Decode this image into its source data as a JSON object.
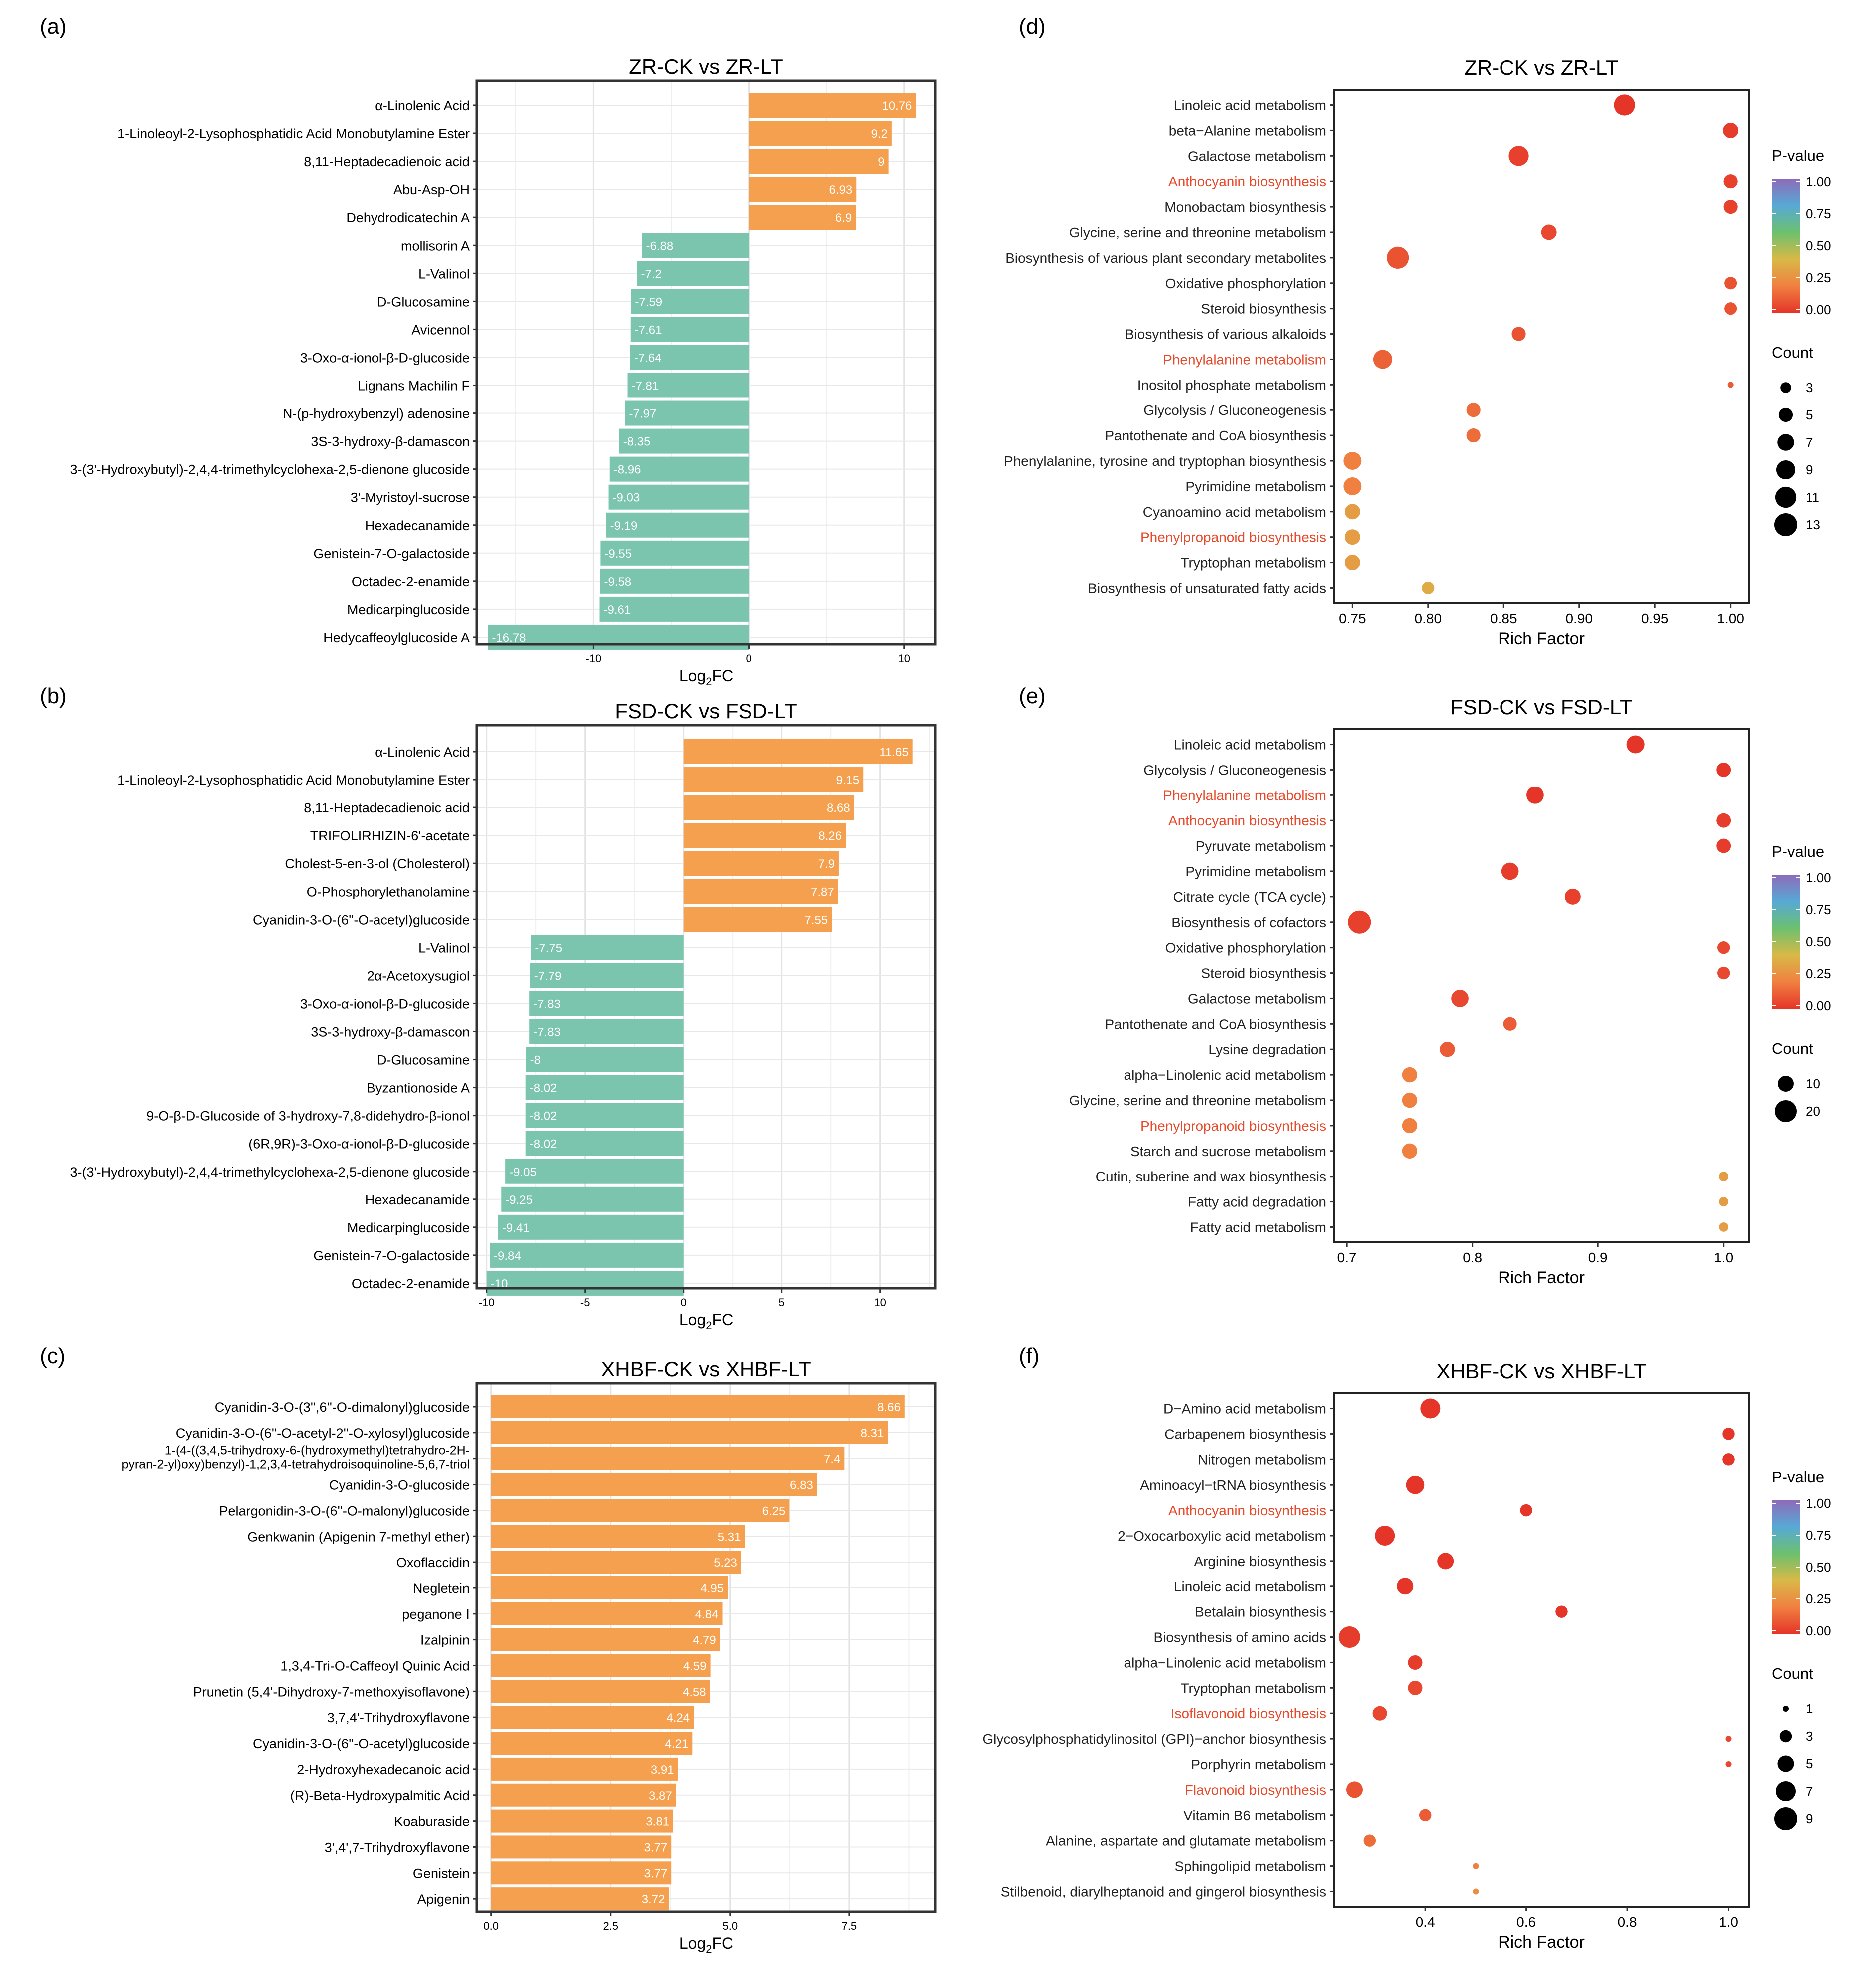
{
  "colors": {
    "up_bar": "#F4A04E",
    "down_bar": "#7BC5AE",
    "gradient": [
      "#8E6BB8",
      "#57A9D6",
      "#6CC06E",
      "#D8B947",
      "#F08040",
      "#E53529"
    ],
    "highlight_label": "#E8492A",
    "normal_label": "#222222"
  },
  "chart_data": [
    {
      "panel": "(a)",
      "type": "bar",
      "orientation": "horizontal",
      "title": "ZR-CK vs ZR-LT",
      "xlabel": "Log2FC",
      "xlim": [
        -17.5,
        12
      ],
      "xticks": [
        -10,
        0,
        10
      ],
      "grid": true,
      "categories": [
        "α-Linolenic Acid",
        "1-Linoleoyl-2-Lysophosphatidic Acid Monobutylamine Ester",
        "8,11-Heptadecadienoic acid",
        "Abu-Asp-OH",
        "Dehydrodicatechin A",
        "mollisorin A",
        "L-Valinol",
        "D-Glucosamine",
        "Avicennol",
        "3-Oxo-α-ionol-β-D-glucoside",
        "Lignans Machilin F",
        "N-(p-hydroxybenzyl) adenosine",
        "3S-3-hydroxy-β-damascon",
        "3-(3'-Hydroxybutyl)-2,4,4-trimethylcyclohexa-2,5-dienone glucoside",
        "3'-Myristoyl-sucrose",
        "Hexadecanamide",
        "Genistein-7-O-galactoside",
        "Octadec-2-enamide",
        "Medicarpinglucoside",
        "Hedycaffeoylglucoside A"
      ],
      "values": [
        10.76,
        9.2,
        9,
        6.93,
        6.9,
        -6.88,
        -7.2,
        -7.59,
        -7.61,
        -7.64,
        -7.81,
        -7.97,
        -8.35,
        -8.96,
        -9.03,
        -9.19,
        -9.55,
        -9.58,
        -9.61,
        -16.78
      ],
      "value_labels": [
        "10.76",
        "9.2",
        "9",
        "6.93",
        "6.9",
        "-6.88",
        "-7.2",
        "-7.59",
        "-7.61",
        "-7.64",
        "-7.81",
        "-7.97",
        "-8.35",
        "-8.96",
        "-9.03",
        "-9.19",
        "-9.55",
        "-9.58",
        "-9.61",
        "-16.78"
      ]
    },
    {
      "panel": "(b)",
      "type": "bar",
      "orientation": "horizontal",
      "title": "FSD-CK vs FSD-LT",
      "xlabel": "Log2FC",
      "xlim": [
        -10.5,
        12.8
      ],
      "xticks": [
        -10,
        -5,
        0,
        5,
        10
      ],
      "grid": true,
      "categories": [
        "α-Linolenic Acid",
        "1-Linoleoyl-2-Lysophosphatidic Acid Monobutylamine Ester",
        "8,11-Heptadecadienoic acid",
        "TRIFOLIRHIZIN-6'-acetate",
        "Cholest-5-en-3-ol (Cholesterol)",
        "O-Phosphorylethanolamine",
        "Cyanidin-3-O-(6''-O-acetyl)glucoside",
        "L-Valinol",
        "2α-Acetoxysugiol",
        "3-Oxo-α-ionol-β-D-glucoside",
        "3S-3-hydroxy-β-damascon",
        "D-Glucosamine",
        "Byzantionoside A",
        "9-O-β-D-Glucoside of 3-hydroxy-7,8-didehydro-β-ionol",
        "(6R,9R)-3-Oxo-α-ionol-β-D-glucoside",
        "3-(3'-Hydroxybutyl)-2,4,4-trimethylcyclohexa-2,5-dienone glucoside",
        "Hexadecanamide",
        "Medicarpinglucoside",
        "Genistein-7-O-galactoside",
        "Octadec-2-enamide"
      ],
      "values": [
        11.65,
        9.15,
        8.68,
        8.26,
        7.9,
        7.87,
        7.55,
        -7.75,
        -7.79,
        -7.83,
        -7.83,
        -8,
        -8.02,
        -8.02,
        -8.02,
        -9.05,
        -9.25,
        -9.41,
        -9.84,
        -10
      ],
      "value_labels": [
        "11.65",
        "9.15",
        "8.68",
        "8.26",
        "7.9",
        "7.87",
        "7.55",
        "-7.75",
        "-7.79",
        "-7.83",
        "-7.83",
        "-8",
        "-8.02",
        "-8.02",
        "-8.02",
        "-9.05",
        "-9.25",
        "-9.41",
        "-9.84",
        "-10"
      ]
    },
    {
      "panel": "(c)",
      "type": "bar",
      "orientation": "horizontal",
      "title": "XHBF-CK vs XHBF-LT",
      "xlabel": "Log2FC",
      "xlim": [
        -0.3,
        9.3
      ],
      "xticks": [
        0.0,
        2.5,
        5.0,
        7.5
      ],
      "xtick_labels": [
        "0.0",
        "2.5",
        "5.0",
        "7.5"
      ],
      "grid": true,
      "categories": [
        "Cyanidin-3-O-(3'',6''-O-dimalonyl)glucoside",
        "Cyanidin-3-O-(6''-O-acetyl-2''-O-xylosyl)glucoside",
        "1-(4-((3,4,5-trihydroxy-6-(hydroxymethyl)tetrahydro-2H-\npyran-2-yl)oxy)benzyl)-1,2,3,4-tetrahydroisoquinoline-5,6,7-triol",
        "Cyanidin-3-O-glucoside",
        "Pelargonidin-3-O-(6''-O-malonyl)glucoside",
        "Genkwanin (Apigenin 7-methyl ether)",
        "Oxoflaccidin",
        "Negletein",
        "peganone Ⅰ",
        "Izalpinin",
        "1,3,4-Tri-O-Caffeoyl Quinic Acid",
        "Prunetin (5,4'-Dihydroxy-7-methoxyisoflavone)",
        "3,7,4'-Trihydroxyflavone",
        "Cyanidin-3-O-(6''-O-acetyl)glucoside",
        "2-Hydroxyhexadecanoic acid",
        "(R)-Beta-Hydroxypalmitic Acid",
        "Koaburaside",
        "3',4',7-Trihydroxyflavone",
        "Genistein",
        "Apigenin"
      ],
      "values": [
        8.66,
        8.31,
        7.4,
        6.83,
        6.25,
        5.31,
        5.23,
        4.95,
        4.84,
        4.79,
        4.59,
        4.58,
        4.24,
        4.21,
        3.91,
        3.87,
        3.81,
        3.77,
        3.77,
        3.72
      ],
      "value_labels": [
        "8.66",
        "8.31",
        "7.4",
        "6.83",
        "6.25",
        "5.31",
        "5.23",
        "4.95",
        "4.84",
        "4.79",
        "4.59",
        "4.58",
        "4.24",
        "4.21",
        "3.91",
        "3.87",
        "3.81",
        "3.77",
        "3.77",
        "3.72"
      ]
    },
    {
      "panel": "(d)",
      "type": "scatter",
      "title": "ZR-CK vs ZR-LT",
      "xlabel": "Rich Factor",
      "xlim": [
        0.738,
        1.012
      ],
      "xticks": [
        0.75,
        0.8,
        0.85,
        0.9,
        0.95,
        1.0
      ],
      "xtick_labels": [
        "0.75",
        "0.80",
        "0.85",
        "0.90",
        "0.95",
        "1.00"
      ],
      "pvalue_legend_title": "P-value",
      "pvalue_ticks": [
        "1.00",
        "0.75",
        "0.50",
        "0.25",
        "0.00"
      ],
      "count_legend_title": "Count",
      "count_ticks": [
        3,
        5,
        7,
        9,
        11,
        13
      ],
      "count_range": [
        1,
        13
      ],
      "categories": [
        "Linoleic acid metabolism",
        "beta−Alanine metabolism",
        "Galactose metabolism",
        "Anthocyanin biosynthesis",
        "Monobactam biosynthesis",
        "Glycine, serine and threonine metabolism",
        "Biosynthesis of various plant secondary metabolites",
        "Oxidative phosphorylation",
        "Steroid biosynthesis",
        "Biosynthesis of various alkaloids",
        "Phenylalanine metabolism",
        "Inositol phosphate metabolism",
        "Glycolysis / Gluconeogenesis",
        "Pantothenate and CoA biosynthesis",
        "Phenylalanine, tyrosine and tryptophan biosynthesis",
        "Pyrimidine metabolism",
        "Cyanoamino acid metabolism",
        "Phenylpropanoid biosynthesis",
        "Tryptophan metabolism",
        "Biosynthesis of unsaturated fatty acids"
      ],
      "highlighted": [
        "Anthocyanin biosynthesis",
        "Phenylalanine metabolism",
        "Phenylpropanoid biosynthesis"
      ],
      "rich_factor": [
        0.93,
        1.0,
        0.86,
        1.0,
        1.0,
        0.88,
        0.78,
        1.0,
        1.0,
        0.86,
        0.77,
        1.0,
        0.83,
        0.83,
        0.75,
        0.75,
        0.75,
        0.75,
        0.75,
        0.8
      ],
      "count": [
        11,
        6,
        10,
        5,
        5,
        6,
        12,
        4,
        4,
        5,
        9,
        1,
        5,
        5,
        8,
        8,
        6,
        6,
        6,
        4
      ],
      "p_value": [
        0.0,
        0.02,
        0.03,
        0.03,
        0.03,
        0.05,
        0.08,
        0.08,
        0.08,
        0.08,
        0.12,
        0.1,
        0.15,
        0.15,
        0.2,
        0.2,
        0.3,
        0.3,
        0.3,
        0.35
      ]
    },
    {
      "panel": "(e)",
      "type": "scatter",
      "title": "FSD-CK vs FSD-LT",
      "xlabel": "Rich Factor",
      "xlim": [
        0.69,
        1.02
      ],
      "xticks": [
        0.7,
        0.8,
        0.9,
        1.0
      ],
      "xtick_labels": [
        "0.7",
        "0.8",
        "0.9",
        "1.0"
      ],
      "pvalue_legend_title": "P-value",
      "pvalue_ticks": [
        "1.00",
        "0.75",
        "0.50",
        "0.25",
        "0.00"
      ],
      "count_legend_title": "Count",
      "count_ticks": [
        10,
        20
      ],
      "count_range": [
        1,
        22
      ],
      "categories": [
        "Linoleic acid metabolism",
        "Glycolysis / Gluconeogenesis",
        "Phenylalanine metabolism",
        "Anthocyanin biosynthesis",
        "Pyruvate metabolism",
        "Pyrimidine metabolism",
        "Citrate cycle (TCA cycle)",
        "Biosynthesis of cofactors",
        "Oxidative phosphorylation",
        "Steroid biosynthesis",
        "Galactose metabolism",
        "Pantothenate and CoA biosynthesis",
        "Lysine degradation",
        "alpha−Linolenic acid metabolism",
        "Glycine, serine and threonine metabolism",
        "Phenylpropanoid biosynthesis",
        "Starch and sucrose metabolism",
        "Cutin, suberine and wax biosynthesis",
        "Fatty acid degradation",
        "Fatty acid metabolism"
      ],
      "highlighted": [
        "Phenylalanine metabolism",
        "Anthocyanin biosynthesis",
        "Phenylpropanoid biosynthesis"
      ],
      "rich_factor": [
        0.93,
        1.0,
        0.85,
        1.0,
        1.0,
        0.83,
        0.88,
        0.71,
        1.0,
        1.0,
        0.79,
        0.83,
        0.78,
        0.75,
        0.75,
        0.75,
        0.75,
        1.0,
        1.0,
        1.0
      ],
      "count": [
        13,
        8,
        12,
        8,
        8,
        12,
        10,
        22,
        6,
        6,
        12,
        7,
        9,
        9,
        9,
        9,
        9,
        3,
        3,
        3
      ],
      "p_value": [
        0.0,
        0.0,
        0.0,
        0.02,
        0.02,
        0.02,
        0.03,
        0.03,
        0.05,
        0.05,
        0.05,
        0.1,
        0.1,
        0.2,
        0.2,
        0.2,
        0.2,
        0.3,
        0.3,
        0.3
      ]
    },
    {
      "panel": "(f)",
      "type": "scatter",
      "title": "XHBF-CK vs XHBF-LT",
      "xlabel": "Rich Factor",
      "xlim": [
        0.22,
        1.04
      ],
      "xticks": [
        0.4,
        0.6,
        0.8,
        1.0
      ],
      "xtick_labels": [
        "0.4",
        "0.6",
        "0.8",
        "1.0"
      ],
      "pvalue_legend_title": "P-value",
      "pvalue_ticks": [
        "1.00",
        "0.75",
        "0.50",
        "0.25",
        "0.00"
      ],
      "count_legend_title": "Count",
      "count_ticks": [
        1,
        3,
        5,
        7,
        9
      ],
      "count_range": [
        1,
        9
      ],
      "categories": [
        "D−Amino acid metabolism",
        "Carbapenem biosynthesis",
        "Nitrogen metabolism",
        "Aminoacyl−tRNA biosynthesis",
        "Anthocyanin biosynthesis",
        "2−Oxocarboxylic acid metabolism",
        "Arginine biosynthesis",
        "Linoleic acid metabolism",
        "Betalain biosynthesis",
        "Biosynthesis of amino acids",
        "alpha−Linolenic acid metabolism",
        "Tryptophan metabolism",
        "Isoflavonoid biosynthesis",
        "Glycosylphosphatidylinositol (GPI)−anchor biosynthesis",
        "Porphyrin metabolism",
        "Flavonoid biosynthesis",
        "Vitamin B6 metabolism",
        "Alanine, aspartate and glutamate metabolism",
        "Sphingolipid metabolism",
        "Stilbenoid, diarylheptanoid and gingerol biosynthesis"
      ],
      "highlighted": [
        "Anthocyanin biosynthesis",
        "Isoflavonoid biosynthesis",
        "Flavonoid biosynthesis"
      ],
      "rich_factor": [
        0.41,
        1.0,
        1.0,
        0.38,
        0.6,
        0.32,
        0.44,
        0.36,
        0.67,
        0.25,
        0.38,
        0.38,
        0.31,
        1.0,
        1.0,
        0.26,
        0.4,
        0.29,
        0.5,
        0.5
      ],
      "count": [
        7,
        3,
        3,
        6,
        3,
        7,
        5,
        5,
        3,
        8,
        4,
        4,
        4,
        1,
        1,
        5,
        3,
        3,
        1,
        1
      ],
      "p_value": [
        0.0,
        0.0,
        0.0,
        0.0,
        0.0,
        0.0,
        0.0,
        0.0,
        0.0,
        0.02,
        0.02,
        0.05,
        0.05,
        0.05,
        0.05,
        0.08,
        0.1,
        0.15,
        0.2,
        0.25
      ]
    }
  ]
}
